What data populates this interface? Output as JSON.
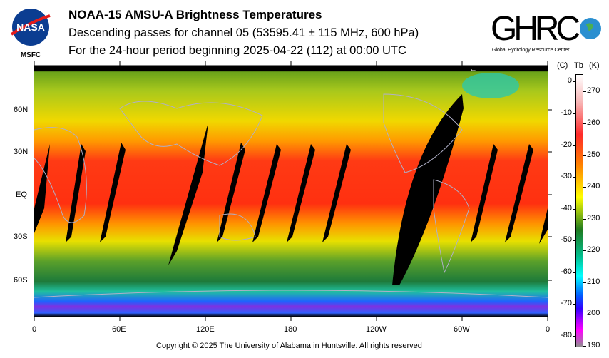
{
  "header": {
    "title": "NOAA-15 AMSU-A Brightness Temperatures",
    "subtitle": "Descending passes for channel 05 (53595.41 ± 115 MHz, 600 hPa)",
    "period": "For the 24-hour period beginning 2025-04-22 (112) at 00:00 UTC"
  },
  "logos": {
    "left": {
      "text": "NASA",
      "label": "MSFC"
    },
    "right": {
      "text": "GHRC",
      "label": "Global Hydrology Resource Center"
    }
  },
  "map": {
    "lat_labels": [
      "60N",
      "30N",
      "EQ",
      "30S",
      "60S"
    ],
    "lon_labels": [
      "0",
      "60E",
      "120E",
      "180",
      "120W",
      "60W",
      "0"
    ],
    "date_line_marker": "←"
  },
  "colorbar": {
    "header_c": "(C)",
    "header_tb": "Tb",
    "header_k": "(K)",
    "celsius_ticks": [
      "0",
      "-10",
      "-20",
      "-30",
      "-40",
      "-50",
      "-60",
      "-70",
      "-80"
    ],
    "kelvin_ticks": [
      "270",
      "260",
      "250",
      "240",
      "230",
      "220",
      "210",
      "200",
      "190"
    ],
    "kelvin_range": [
      189.5,
      275.5
    ]
  },
  "footer": {
    "copyright": "Copyright © 2025 The University of Alabama in Huntsville.  All rights reserved"
  }
}
